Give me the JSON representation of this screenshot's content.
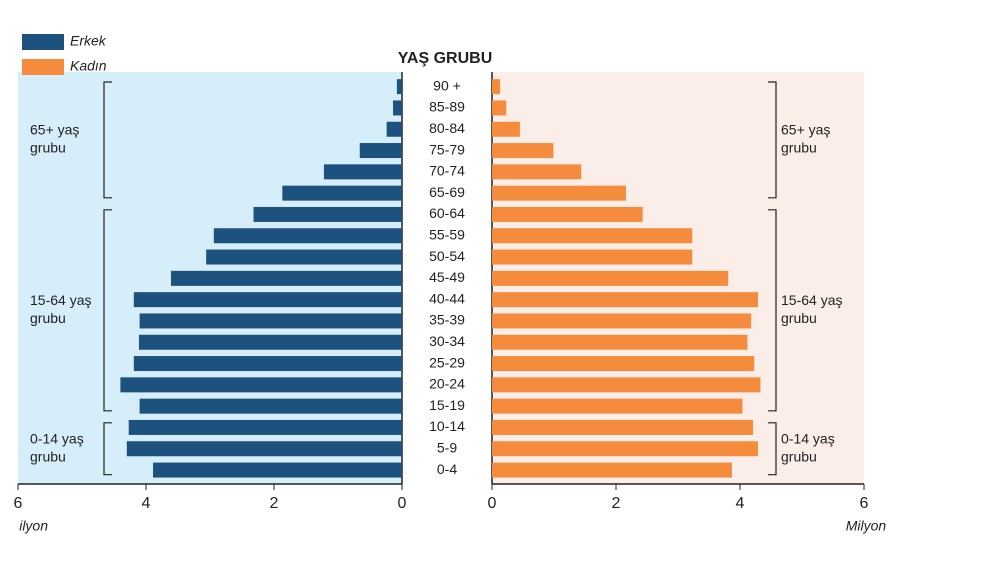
{
  "chart_data": {
    "type": "pyramid",
    "title": "YAŞ GRUBU",
    "categories": [
      "90 +",
      "85-89",
      "80-84",
      "75-79",
      "70-74",
      "65-69",
      "60-64",
      "55-59",
      "50-54",
      "45-49",
      "40-44",
      "35-39",
      "30-34",
      "25-29",
      "20-24",
      "15-19",
      "10-14",
      "5-9",
      "0-4"
    ],
    "series": [
      {
        "name": "Erkek",
        "color": "#1d527e",
        "values": [
          0.08,
          0.14,
          0.24,
          0.66,
          1.22,
          1.87,
          2.32,
          2.94,
          3.06,
          3.61,
          4.19,
          4.1,
          4.11,
          4.19,
          4.4,
          4.1,
          4.27,
          4.3,
          3.89
        ]
      },
      {
        "name": "Kadın",
        "color": "#f58b3d",
        "values": [
          0.13,
          0.23,
          0.45,
          0.99,
          1.44,
          2.16,
          2.43,
          3.23,
          3.23,
          3.81,
          4.29,
          4.18,
          4.12,
          4.23,
          4.33,
          4.04,
          4.21,
          4.29,
          3.87
        ]
      }
    ],
    "xlim": [
      0,
      6
    ],
    "xticks": [
      0,
      2,
      4,
      6
    ],
    "x_label_left": "ilyon",
    "x_label_right": "Milyon",
    "groups": [
      [
        "65+ yaş",
        "grubu"
      ],
      [
        "15-64 yaş",
        "grubu"
      ],
      [
        "0-14 yaş",
        "grubu"
      ]
    ]
  }
}
